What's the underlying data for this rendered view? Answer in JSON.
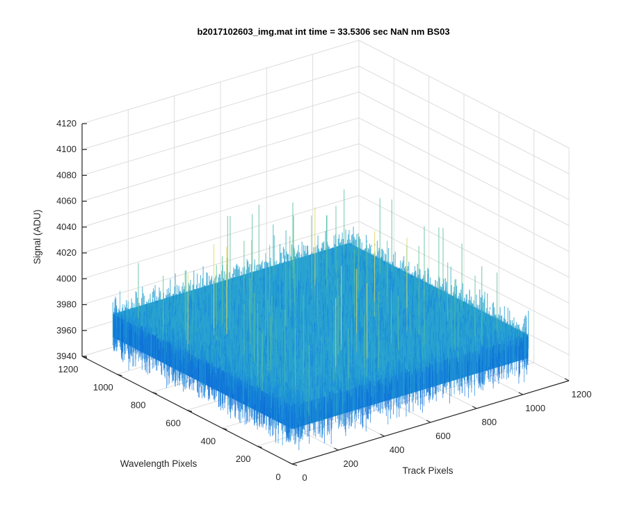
{
  "chart_data": {
    "type": "surface",
    "title": "b2017102603_img.mat int time = 33.5306 sec  NaN nm BS03",
    "xlabel": "Track Pixels",
    "ylabel": "Wavelength Pixels",
    "zlabel": "Signal (ADU)",
    "xlim": [
      0,
      1200
    ],
    "ylim": [
      0,
      1200
    ],
    "zlim": [
      3940,
      4120
    ],
    "x_ticks": [
      "0",
      "200",
      "400",
      "600",
      "800",
      "1000",
      "1200"
    ],
    "y_ticks": [
      "0",
      "200",
      "400",
      "600",
      "800",
      "1000",
      "1200"
    ],
    "z_ticks": [
      "3940",
      "3960",
      "3980",
      "4000",
      "4020",
      "4040",
      "4060",
      "4080",
      "4100",
      "4120"
    ],
    "grid": true,
    "data_extent": {
      "x": [
        0,
        1024
      ],
      "y": [
        0,
        1024
      ]
    },
    "signal_mean": 3985,
    "signal_noise_range": [
      3955,
      4060
    ],
    "colormap": [
      "#0d6fd8",
      "#1a8cd8",
      "#2aa4d0",
      "#3bb5c2",
      "#5fc09a",
      "#e0d860"
    ]
  }
}
